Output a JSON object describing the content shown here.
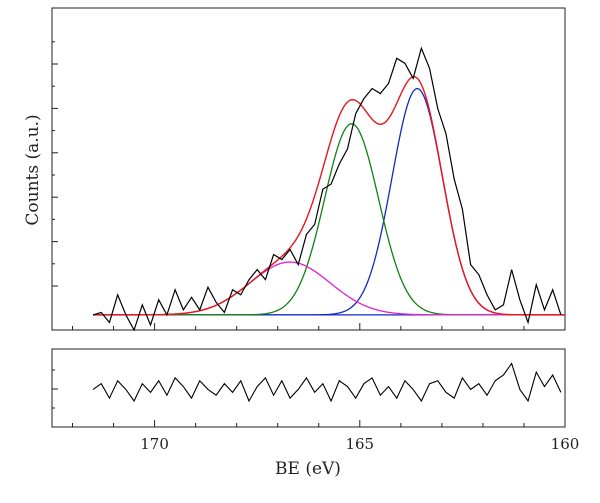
{
  "chart_data": [
    {
      "type": "line",
      "title": "",
      "xlabel": "BE (eV)",
      "ylabel": "Counts (a.u.)",
      "xlim": [
        172.5,
        160
      ],
      "x_reversed": true,
      "ylim": [
        -0.3,
        6.1
      ],
      "xticks": [
        170,
        165,
        160
      ],
      "grid": false,
      "legend": "none",
      "colors": {
        "raw": "#000000",
        "envelope": "#e8161a",
        "peak_high_be": "#1428c8",
        "peak_mid_be": "#128012",
        "peak_low_be": "#e020d0",
        "baseline": "#1428c8"
      },
      "baseline": {
        "x": [
          171.5,
          160
        ],
        "y": [
          0.0,
          0.0
        ]
      },
      "components": [
        {
          "color_key": "peak_high_be",
          "center": 163.6,
          "height": 4.5,
          "fwhm": 1.45
        },
        {
          "color_key": "peak_mid_be",
          "center": 165.2,
          "height": 3.8,
          "fwhm": 1.55
        },
        {
          "color_key": "peak_low_be",
          "center": 166.7,
          "height": 1.05,
          "fwhm": 2.3
        }
      ],
      "raw_data": {
        "x": [
          171.5,
          171.3,
          171.1,
          170.9,
          170.7,
          170.5,
          170.3,
          170.1,
          169.9,
          169.7,
          169.5,
          169.3,
          169.1,
          168.9,
          168.7,
          168.5,
          168.3,
          168.1,
          167.9,
          167.7,
          167.5,
          167.3,
          167.1,
          166.9,
          166.7,
          166.5,
          166.3,
          166.1,
          165.9,
          165.7,
          165.5,
          165.3,
          165.1,
          164.9,
          164.7,
          164.5,
          164.3,
          164.1,
          163.9,
          163.7,
          163.5,
          163.3,
          163.1,
          162.9,
          162.7,
          162.5,
          162.3,
          162.1,
          161.9,
          161.7,
          161.5,
          161.3,
          161.1,
          160.9,
          160.7,
          160.5,
          160.3,
          160.1
        ],
        "y": [
          0.0,
          0.05,
          -0.15,
          0.4,
          0.0,
          -0.3,
          0.2,
          -0.2,
          0.3,
          0.0,
          0.5,
          0.1,
          0.35,
          0.1,
          0.55,
          0.25,
          0.05,
          0.5,
          0.4,
          0.7,
          0.9,
          0.7,
          1.2,
          1.1,
          1.3,
          1.0,
          1.6,
          1.8,
          2.5,
          2.6,
          3.0,
          3.3,
          4.0,
          4.3,
          4.5,
          4.4,
          4.6,
          5.1,
          5.0,
          4.7,
          5.3,
          4.9,
          4.1,
          3.6,
          2.7,
          2.1,
          1.0,
          0.8,
          0.4,
          0.1,
          0.2,
          0.9,
          0.3,
          -0.15,
          0.6,
          0.1,
          0.5,
          0.0
        ]
      },
      "residual": {
        "x": [
          171.5,
          171.3,
          171.1,
          170.9,
          170.7,
          170.5,
          170.3,
          170.1,
          169.9,
          169.7,
          169.5,
          169.3,
          169.1,
          168.9,
          168.7,
          168.5,
          168.3,
          168.1,
          167.9,
          167.7,
          167.5,
          167.3,
          167.1,
          166.9,
          166.7,
          166.5,
          166.3,
          166.1,
          165.9,
          165.7,
          165.5,
          165.3,
          165.1,
          164.9,
          164.7,
          164.5,
          164.3,
          164.1,
          163.9,
          163.7,
          163.5,
          163.3,
          163.1,
          162.9,
          162.7,
          162.5,
          162.3,
          162.1,
          161.9,
          161.7,
          161.5,
          161.3,
          161.1,
          160.9,
          160.7,
          160.5,
          160.3,
          160.1
        ],
        "y": [
          0.0,
          0.2,
          -0.3,
          0.3,
          0.0,
          -0.4,
          0.2,
          -0.1,
          0.3,
          -0.2,
          0.4,
          0.1,
          -0.3,
          0.3,
          0.0,
          -0.2,
          0.2,
          -0.1,
          0.3,
          -0.4,
          0.1,
          0.4,
          -0.2,
          0.3,
          -0.3,
          0.0,
          0.4,
          -0.1,
          0.2,
          -0.4,
          0.3,
          0.1,
          -0.3,
          0.2,
          0.4,
          -0.2,
          0.1,
          -0.3,
          0.3,
          0.0,
          -0.4,
          0.2,
          0.3,
          -0.1,
          -0.3,
          0.4,
          0.0,
          0.2,
          -0.2,
          0.3,
          0.5,
          0.9,
          0.0,
          -0.4,
          0.6,
          0.1,
          0.5,
          -0.1
        ]
      }
    }
  ]
}
